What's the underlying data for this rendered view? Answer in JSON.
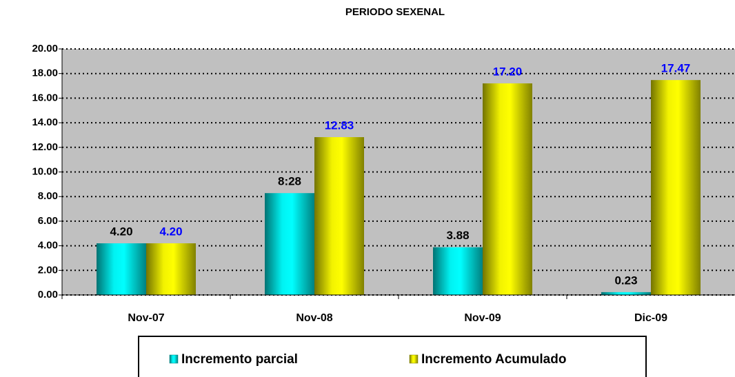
{
  "chart_data": {
    "type": "bar",
    "title": "PERIODO SEXENAL",
    "categories": [
      "Nov-07",
      "Nov-08",
      "Nov-09",
      "Dic-09"
    ],
    "series": [
      {
        "name": "Incremento parcial",
        "color": "#00ffff",
        "label_color": "#000000",
        "values": [
          4.2,
          8.28,
          3.88,
          0.23
        ],
        "value_labels": [
          "4.20",
          "8:28",
          "3.88",
          "0.23"
        ]
      },
      {
        "name": "Incremento Acumulado",
        "color": "#ffff00",
        "label_color": "#0000ff",
        "values": [
          4.2,
          12.83,
          17.2,
          17.47
        ],
        "value_labels": [
          "4.20",
          "12.83",
          "17.20",
          "17.47"
        ]
      }
    ],
    "ylim": [
      0,
      20
    ],
    "yticks": [
      {
        "value": 0,
        "label": "0.00"
      },
      {
        "value": 2,
        "label": "2.00"
      },
      {
        "value": 4,
        "label": "4.00"
      },
      {
        "value": 6,
        "label": "6.00"
      },
      {
        "value": 8,
        "label": "8.00"
      },
      {
        "value": 10,
        "label": "10.00"
      },
      {
        "value": 12,
        "label": "12.00"
      },
      {
        "value": 14,
        "label": "14.00"
      },
      {
        "value": 16,
        "label": "16.00"
      },
      {
        "value": 18,
        "label": "18.00"
      },
      {
        "value": 20,
        "label": "20.00"
      }
    ],
    "grid": true,
    "legend": "bottom",
    "plot_background": "#c0c0c0"
  }
}
